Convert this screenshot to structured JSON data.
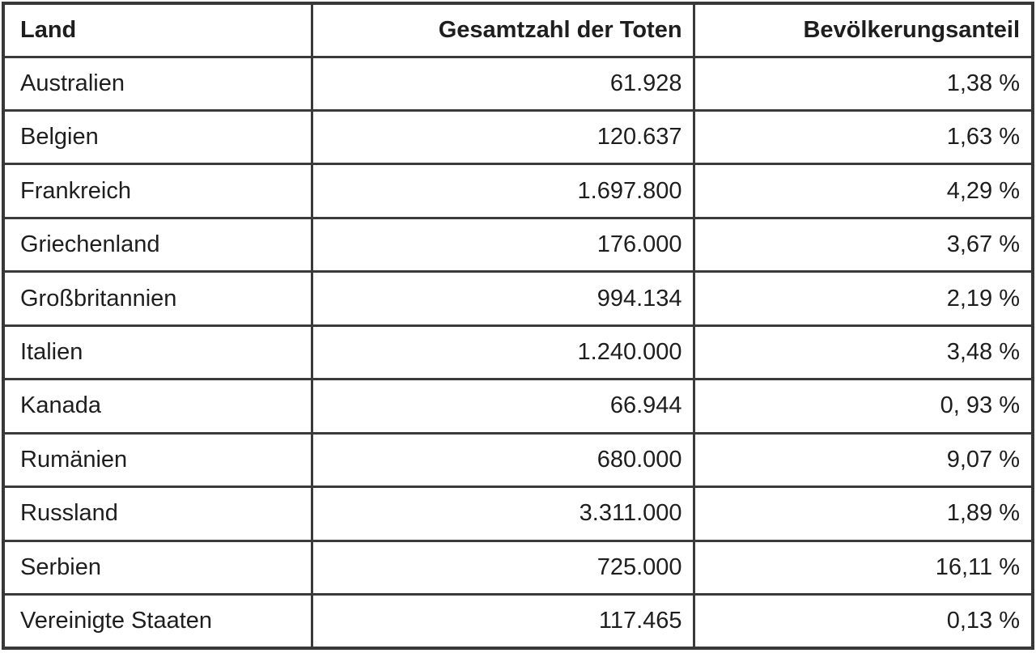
{
  "table": {
    "columns": [
      "Land",
      "Gesamtzahl der Toten",
      "Bevölkerungsanteil"
    ],
    "rows": [
      [
        "Australien",
        "61.928",
        "1,38 %"
      ],
      [
        "Belgien",
        "120.637",
        "1,63 %"
      ],
      [
        "Frankreich",
        "1.697.800",
        "4,29 %"
      ],
      [
        "Griechenland",
        "176.000",
        "3,67 %"
      ],
      [
        "Großbritannien",
        "994.134",
        "2,19 %"
      ],
      [
        "Italien",
        "1.240.000",
        "3,48 %"
      ],
      [
        "Kanada",
        "66.944",
        "0, 93 %"
      ],
      [
        "Rumänien",
        "680.000",
        "9,07 %"
      ],
      [
        "Russland",
        "3.311.000",
        "1,89 %"
      ],
      [
        "Serbien",
        "725.000",
        "16,11 %"
      ],
      [
        "Vereinigte Staaten",
        "117.465",
        "0,13 %"
      ]
    ]
  },
  "chart_data": {
    "type": "table",
    "title": "",
    "columns": [
      "Land",
      "Gesamtzahl der Toten",
      "Bevölkerungsanteil"
    ],
    "rows": [
      [
        "Australien",
        "61.928",
        "1,38 %"
      ],
      [
        "Belgien",
        "120.637",
        "1,63 %"
      ],
      [
        "Frankreich",
        "1.697.800",
        "4,29 %"
      ],
      [
        "Griechenland",
        "176.000",
        "3,67 %"
      ],
      [
        "Großbritannien",
        "994.134",
        "2,19 %"
      ],
      [
        "Italien",
        "1.240.000",
        "3,48 %"
      ],
      [
        "Kanada",
        "66.944",
        "0, 93 %"
      ],
      [
        "Rumänien",
        "680.000",
        "9,07 %"
      ],
      [
        "Russland",
        "3.311.000",
        "1,89 %"
      ],
      [
        "Serbien",
        "725.000",
        "16,11 %"
      ],
      [
        "Vereinigte Staaten",
        "117.465",
        "0,13 %"
      ]
    ],
    "numeric": {
      "countries": [
        "Australien",
        "Belgien",
        "Frankreich",
        "Griechenland",
        "Großbritannien",
        "Italien",
        "Kanada",
        "Rumänien",
        "Russland",
        "Serbien",
        "Vereinigte Staaten"
      ],
      "total_deaths": [
        61928,
        120637,
        1697800,
        176000,
        994134,
        1240000,
        66944,
        680000,
        3311000,
        725000,
        117465
      ],
      "population_share_percent": [
        1.38,
        1.63,
        4.29,
        3.67,
        2.19,
        3.48,
        0.93,
        9.07,
        1.89,
        16.11,
        0.13
      ]
    }
  },
  "colors": {
    "border": "#3a3a3a",
    "text": "#1e1e1e",
    "background": "#ffffff"
  }
}
